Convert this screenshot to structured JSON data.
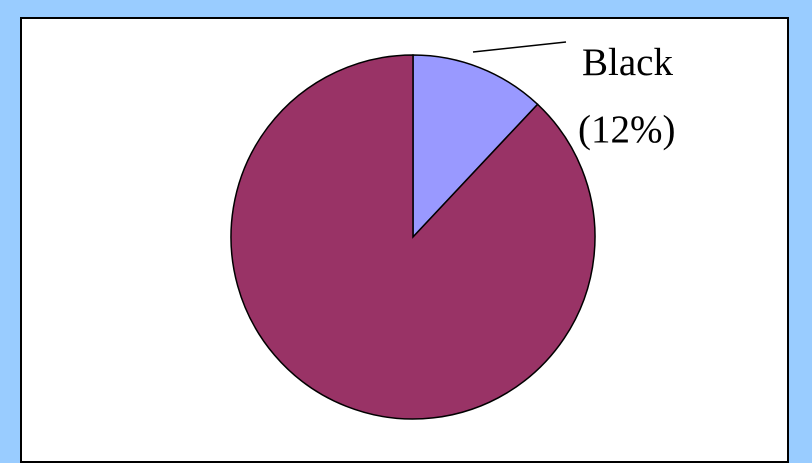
{
  "chart_data": {
    "type": "pie",
    "slices": [
      {
        "label": "Black",
        "value": 12,
        "color": "#9999ff",
        "label_text": "Black",
        "percent_text": "(12%)"
      },
      {
        "label": "",
        "value": 88,
        "color": "#993366",
        "label_text": "",
        "percent_text": ""
      }
    ],
    "start": "top",
    "direction": "clockwise",
    "legend": "none",
    "title": ""
  }
}
